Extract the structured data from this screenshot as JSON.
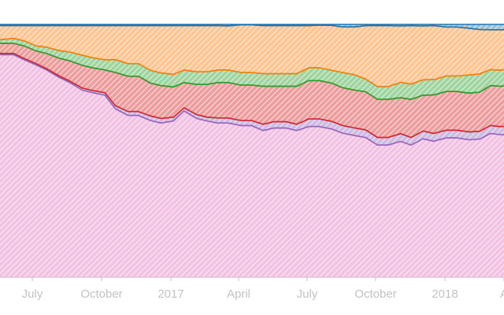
{
  "chart_data": {
    "type": "area",
    "stacked": true,
    "normalized": true,
    "grid": false,
    "legend": "none",
    "x_axis": {
      "unit": "month",
      "ticks": [
        "July",
        "October",
        "2017",
        "April",
        "July",
        "October",
        "2018",
        "A"
      ]
    },
    "ylim": [
      0,
      1
    ],
    "x": [
      "2016-05-01",
      "2016-05-15",
      "2016-06-01",
      "2016-06-15",
      "2016-07-01",
      "2016-07-15",
      "2016-08-01",
      "2016-08-15",
      "2016-09-01",
      "2016-09-15",
      "2016-10-01",
      "2016-10-15",
      "2016-11-01",
      "2016-11-15",
      "2016-12-01",
      "2016-12-15",
      "2017-01-01",
      "2017-01-15",
      "2017-02-01",
      "2017-02-15",
      "2017-03-01",
      "2017-03-15",
      "2017-04-01",
      "2017-04-15",
      "2017-05-01",
      "2017-05-15",
      "2017-06-01",
      "2017-06-15",
      "2017-07-01",
      "2017-07-15",
      "2017-08-01",
      "2017-08-15",
      "2017-09-01",
      "2017-09-15",
      "2017-10-01",
      "2017-10-15",
      "2017-11-01",
      "2017-11-15",
      "2017-12-01",
      "2017-12-15",
      "2018-01-01",
      "2018-01-15",
      "2018-02-01",
      "2018-02-15",
      "2018-03-01",
      "2018-03-15",
      "2018-04-01"
    ],
    "series": [
      {
        "color": "#e377c2",
        "values": [
          0.89,
          0.88,
          0.88,
          0.86,
          0.84,
          0.82,
          0.79,
          0.77,
          0.74,
          0.73,
          0.72,
          0.66,
          0.64,
          0.64,
          0.62,
          0.61,
          0.62,
          0.66,
          0.63,
          0.62,
          0.61,
          0.61,
          0.6,
          0.6,
          0.58,
          0.59,
          0.59,
          0.58,
          0.59,
          0.59,
          0.58,
          0.57,
          0.56,
          0.55,
          0.52,
          0.52,
          0.53,
          0.52,
          0.54,
          0.53,
          0.54,
          0.54,
          0.53,
          0.53,
          0.54,
          0.53,
          0.52
        ]
      },
      {
        "color": "#9467bd",
        "values": [
          0.005,
          0.005,
          0.005,
          0.005,
          0.005,
          0.005,
          0.006,
          0.006,
          0.008,
          0.008,
          0.01,
          0.012,
          0.015,
          0.015,
          0.018,
          0.018,
          0.015,
          0.012,
          0.015,
          0.015,
          0.02,
          0.02,
          0.02,
          0.02,
          0.025,
          0.025,
          0.025,
          0.025,
          0.03,
          0.03,
          0.03,
          0.03,
          0.03,
          0.03,
          0.03,
          0.03,
          0.03,
          0.03,
          0.03,
          0.03,
          0.03,
          0.03,
          0.03,
          0.03,
          0.03,
          0.03,
          0.03
        ]
      },
      {
        "color": "#d62728",
        "values": [
          0.04,
          0.04,
          0.04,
          0.05,
          0.05,
          0.06,
          0.07,
          0.08,
          0.09,
          0.09,
          0.09,
          0.13,
          0.14,
          0.14,
          0.13,
          0.13,
          0.12,
          0.1,
          0.12,
          0.13,
          0.14,
          0.14,
          0.14,
          0.14,
          0.15,
          0.14,
          0.14,
          0.15,
          0.15,
          0.15,
          0.15,
          0.15,
          0.15,
          0.15,
          0.15,
          0.15,
          0.14,
          0.15,
          0.14,
          0.15,
          0.15,
          0.15,
          0.15,
          0.15,
          0.15,
          0.15,
          0.15
        ]
      },
      {
        "color": "#2ca02c",
        "values": [
          0.015,
          0.015,
          0.02,
          0.02,
          0.02,
          0.025,
          0.03,
          0.035,
          0.04,
          0.04,
          0.04,
          0.05,
          0.05,
          0.05,
          0.05,
          0.05,
          0.05,
          0.05,
          0.05,
          0.05,
          0.05,
          0.05,
          0.05,
          0.05,
          0.05,
          0.05,
          0.05,
          0.05,
          0.05,
          0.05,
          0.05,
          0.06,
          0.06,
          0.05,
          0.05,
          0.05,
          0.06,
          0.06,
          0.06,
          0.06,
          0.06,
          0.06,
          0.07,
          0.07,
          0.06,
          0.06,
          0.06
        ]
      },
      {
        "color": "#ff7f0e",
        "values": [
          0.045,
          0.055,
          0.05,
          0.06,
          0.08,
          0.085,
          0.099,
          0.104,
          0.117,
          0.127,
          0.135,
          0.133,
          0.15,
          0.15,
          0.177,
          0.187,
          0.193,
          0.176,
          0.183,
          0.183,
          0.175,
          0.174,
          0.188,
          0.188,
          0.19,
          0.19,
          0.19,
          0.19,
          0.165,
          0.167,
          0.176,
          0.18,
          0.19,
          0.21,
          0.24,
          0.24,
          0.22,
          0.23,
          0.21,
          0.21,
          0.19,
          0.19,
          0.18,
          0.17,
          0.15,
          0.15,
          0.14
        ]
      },
      {
        "color": "#1f77b4",
        "values": [
          0.005,
          0.005,
          0.005,
          0.005,
          0.005,
          0.005,
          0.005,
          0.005,
          0.005,
          0.005,
          0.005,
          0.005,
          0.005,
          0.005,
          0.005,
          0.005,
          0.005,
          0.005,
          0.005,
          0.005,
          0.005,
          0.006,
          0.002,
          0.002,
          0.005,
          0.005,
          0.005,
          0.005,
          0.005,
          0.003,
          0.004,
          0.01,
          0.01,
          0.005,
          0.005,
          0.005,
          0.006,
          0.005,
          0.006,
          0.005,
          0.01,
          0.01,
          0.015,
          0.02,
          0.02,
          0.02,
          0.02
        ]
      }
    ]
  }
}
